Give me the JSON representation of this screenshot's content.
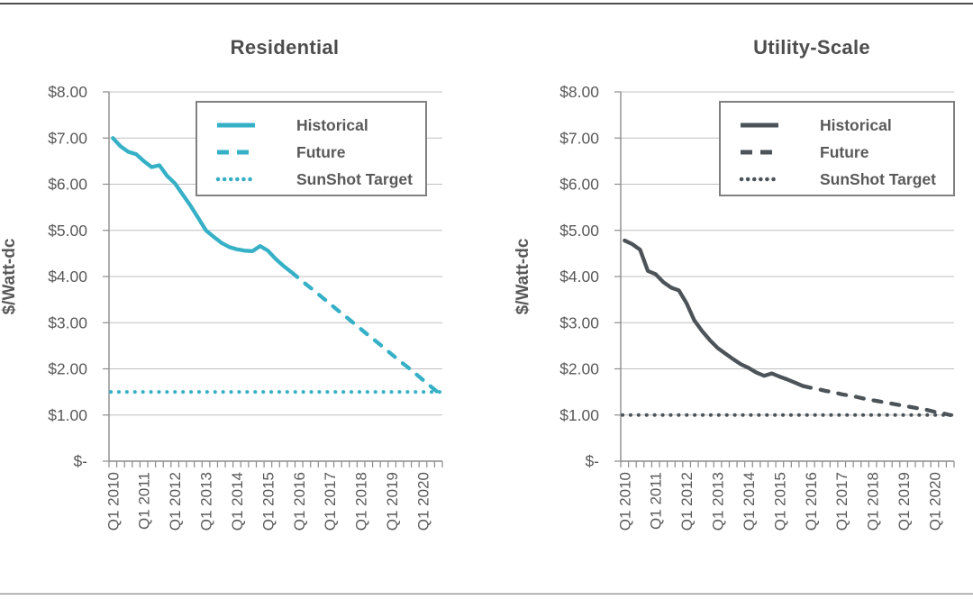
{
  "figure": {
    "description": "Two quarterly line charts of solar PV price in $/Watt-dc from Q1 2010, each with Historical, Future and SunShot Target series"
  },
  "chart_data": [
    {
      "type": "line",
      "title": "Residential",
      "ylabel": "$/Watt-dc",
      "color": "#36b0c6",
      "text_color": "#595959",
      "grid": true,
      "legend_position": "top-right",
      "ylim": [
        0,
        8
      ],
      "y_tick_labels": [
        "$-",
        "$1.00",
        "$2.00",
        "$3.00",
        "$4.00",
        "$5.00",
        "$6.00",
        "$7.00",
        "$8.00"
      ],
      "x_tick_labels": [
        "Q1 2010",
        "Q1 2011",
        "Q1 2012",
        "Q1 2013",
        "Q1 2014",
        "Q1 2015",
        "Q1 2016",
        "Q1 2017",
        "Q1 2018",
        "Q1 2019",
        "Q1 2020"
      ],
      "x_label_every": 4,
      "x_quarters_total": 43,
      "series": [
        {
          "name": "Historical",
          "style": "solid",
          "x_start": 0,
          "values": [
            7.0,
            6.82,
            6.7,
            6.65,
            6.5,
            6.37,
            6.41,
            6.18,
            6.02,
            5.78,
            5.54,
            5.27,
            5.0,
            4.86,
            4.73,
            4.64,
            4.59,
            4.56,
            4.55,
            4.66,
            4.56,
            4.38,
            4.23,
            4.1
          ]
        },
        {
          "name": "Future",
          "style": "dashed",
          "x_start": 23,
          "values": [
            4.1,
            3.96,
            3.82,
            3.69,
            3.55,
            3.41,
            3.27,
            3.14,
            3.0,
            2.86,
            2.72,
            2.59,
            2.45,
            2.31,
            2.17,
            2.04,
            1.9,
            1.76,
            1.62,
            1.48
          ]
        },
        {
          "name": "SunShot Target",
          "style": "dotted",
          "constant": 1.5
        }
      ]
    },
    {
      "type": "line",
      "title": "Utility-Scale",
      "ylabel": "$/Watt-dc",
      "color": "#4c5459",
      "text_color": "#595959",
      "grid": true,
      "legend_position": "top-right",
      "ylim": [
        0,
        8
      ],
      "y_tick_labels": [
        "$-",
        "$1.00",
        "$2.00",
        "$3.00",
        "$4.00",
        "$5.00",
        "$6.00",
        "$7.00",
        "$8.00"
      ],
      "x_tick_labels": [
        "Q1 2010",
        "Q1 2011",
        "Q1 2012",
        "Q1 2013",
        "Q1 2014",
        "Q1 2015",
        "Q1 2016",
        "Q1 2017",
        "Q1 2018",
        "Q1 2019",
        "Q1 2020"
      ],
      "x_label_every": 4,
      "x_quarters_total": 43,
      "series": [
        {
          "name": "Historical",
          "style": "solid",
          "x_start": 0,
          "values": [
            4.78,
            4.7,
            4.58,
            4.12,
            4.05,
            3.88,
            3.76,
            3.7,
            3.42,
            3.05,
            2.82,
            2.62,
            2.45,
            2.33,
            2.21,
            2.1,
            2.02,
            1.92,
            1.85,
            1.9,
            1.83,
            1.77,
            1.7,
            1.63
          ]
        },
        {
          "name": "Future",
          "style": "dashed",
          "x_start": 23,
          "values": [
            1.63,
            1.59,
            1.56,
            1.52,
            1.49,
            1.45,
            1.42,
            1.39,
            1.35,
            1.32,
            1.29,
            1.26,
            1.23,
            1.2,
            1.17,
            1.14,
            1.11,
            1.07,
            1.04,
            1.0
          ]
        },
        {
          "name": "SunShot Target",
          "style": "dotted",
          "constant": 1.0
        }
      ]
    }
  ]
}
